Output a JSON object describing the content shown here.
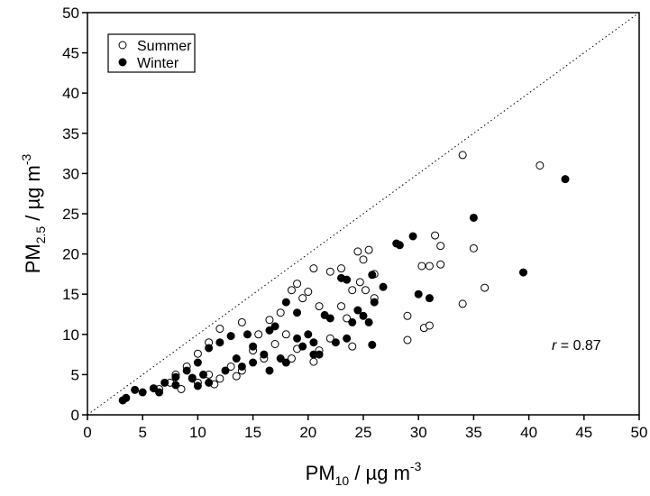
{
  "chart_data": {
    "type": "scatter",
    "xlabel": {
      "main": "PM",
      "sub": "10",
      "rest": " / µg m",
      "sup": "-3"
    },
    "ylabel": {
      "main": "PM",
      "sub": "2.5",
      "rest": " / µg m",
      "sup": "-3"
    },
    "annotation": {
      "var": "r",
      "text": " = 0.87"
    },
    "xlim": [
      0,
      50
    ],
    "ylim": [
      0,
      50
    ],
    "xticks": [
      0,
      5,
      10,
      15,
      20,
      25,
      30,
      35,
      40,
      45,
      50
    ],
    "yticks": [
      0,
      5,
      10,
      15,
      20,
      25,
      30,
      35,
      40,
      45,
      50
    ],
    "legend": "upper left",
    "series": [
      {
        "name": "Summer",
        "color": "#000000",
        "filled": false,
        "x": [
          34,
          41,
          35,
          36,
          34,
          31,
          30.3,
          32,
          31.5,
          32,
          30.5,
          31,
          29,
          29,
          26,
          25.5,
          24.5,
          25,
          24.7,
          24,
          23,
          22,
          20.5,
          19,
          18.5,
          19.5,
          20,
          21,
          24,
          23.5,
          22,
          21,
          20.5,
          18,
          17.5,
          16.5,
          15.5,
          14,
          12,
          11,
          10,
          9,
          8,
          8.5,
          7.5,
          6.5,
          10,
          11,
          13,
          12,
          14,
          15,
          16,
          17,
          18.5,
          19,
          26,
          25.2,
          23,
          9.5,
          11.5,
          13.5
        ],
        "values": [
          32.3,
          31,
          20.7,
          15.8,
          13.8,
          18.5,
          18.5,
          18.7,
          22.3,
          21,
          10.8,
          11.1,
          12.3,
          9.3,
          17.5,
          20.5,
          20.3,
          19.3,
          16.5,
          15.5,
          18.2,
          17.8,
          18.2,
          16.3,
          15.5,
          14.5,
          15.3,
          13.5,
          8.5,
          12,
          9.5,
          8,
          6.6,
          10,
          12.7,
          11.8,
          10,
          11.5,
          10.7,
          9,
          7.6,
          6,
          5,
          3.2,
          4,
          3.2,
          4,
          5,
          6,
          4.5,
          5.5,
          8,
          7,
          8.8,
          7,
          8.2,
          14.5,
          15.5,
          13.5,
          4.6,
          3.8,
          4.8
        ]
      },
      {
        "name": "Winter",
        "color": "#000000",
        "filled": true,
        "x": [
          43.3,
          39.5,
          35,
          30,
          31,
          29.5,
          28,
          28.3,
          25.8,
          25.8,
          25,
          26,
          26.8,
          24.5,
          25.5,
          24,
          23,
          23.5,
          22,
          21.5,
          20,
          20.5,
          19,
          20.5,
          19,
          18,
          17,
          16.5,
          15,
          14.5,
          13,
          12,
          11,
          10,
          9,
          8,
          7,
          6,
          5,
          4.3,
          3.5,
          3.2,
          6.5,
          8,
          9.5,
          10.5,
          11,
          12.5,
          13.5,
          14,
          16,
          17.5,
          18,
          19.5,
          22.5,
          23.5,
          21,
          16.5,
          15,
          10
        ],
        "values": [
          29.3,
          17.7,
          24.5,
          15,
          14.5,
          22.2,
          21.3,
          21.1,
          8.7,
          17.4,
          12.3,
          14,
          15.9,
          13,
          11.5,
          11.5,
          17,
          16.8,
          12,
          12.4,
          10,
          9,
          12.7,
          7.5,
          9.5,
          14,
          11,
          10.5,
          8.5,
          10,
          9.8,
          9,
          8.3,
          6.5,
          5.5,
          4.7,
          4,
          3.3,
          2.8,
          3.1,
          2.1,
          1.8,
          2.8,
          3.7,
          4.5,
          5,
          4,
          5.5,
          7,
          6,
          7.5,
          7,
          6.5,
          8.5,
          9,
          9.5,
          7.5,
          5.5,
          6.5,
          3.6
        ]
      }
    ]
  }
}
